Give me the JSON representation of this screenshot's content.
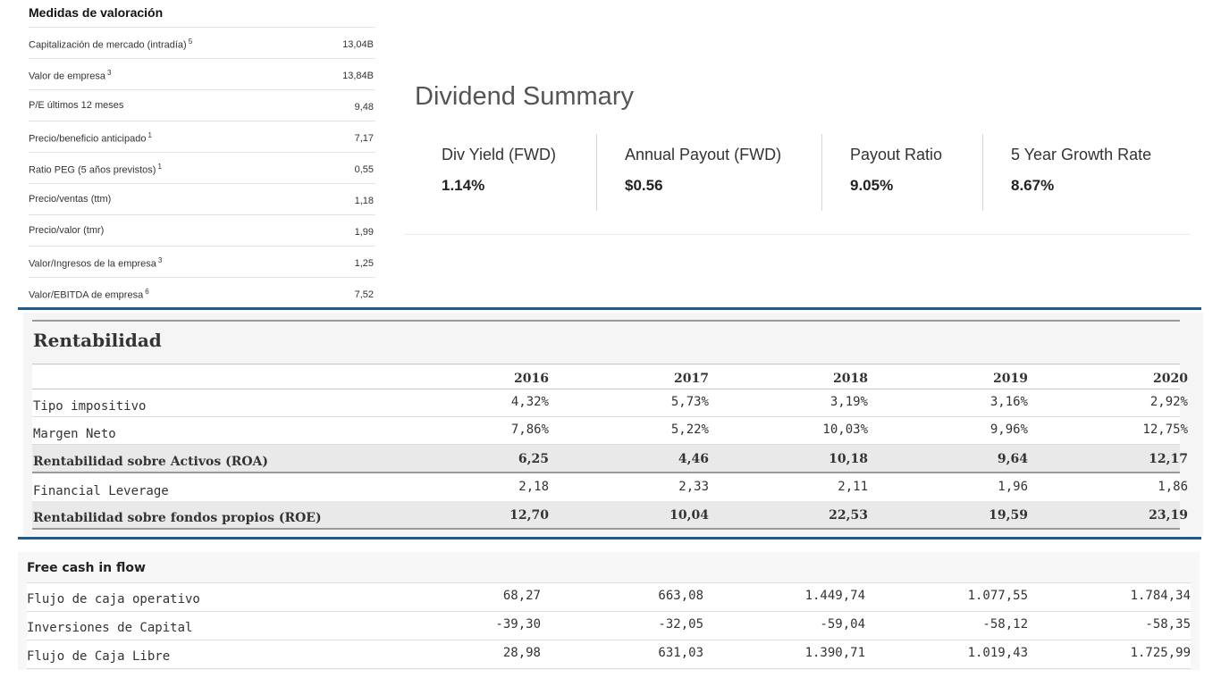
{
  "valuation": {
    "title": "Medidas de valoración",
    "rows": [
      {
        "label": "Capitalización de mercado (intradía)",
        "sup": "5",
        "value": "13,04B"
      },
      {
        "label": "Valor de empresa",
        "sup": "3",
        "value": "13,84B"
      },
      {
        "label": "P/E últimos 12 meses",
        "sup": "",
        "value": "9,48"
      },
      {
        "label": "Precio/beneficio anticipado",
        "sup": "1",
        "value": "7,17"
      },
      {
        "label": "Ratio PEG (5 años previstos)",
        "sup": "1",
        "value": "0,55"
      },
      {
        "label": "Precio/ventas (ttm)",
        "sup": "",
        "value": "1,18"
      },
      {
        "label": "Precio/valor (tmr)",
        "sup": "",
        "value": "1,99"
      },
      {
        "label": "Valor/Ingresos de la empresa",
        "sup": "3",
        "value": "1,25"
      },
      {
        "label": "Valor/EBITDA de empresa",
        "sup": "6",
        "value": "7,52"
      }
    ]
  },
  "dividend": {
    "title": "Dividend Summary",
    "items": [
      {
        "label": "Div Yield (FWD)",
        "value": "1.14%"
      },
      {
        "label": "Annual Payout (FWD)",
        "value": "$0.56"
      },
      {
        "label": "Payout Ratio",
        "value": "9.05%"
      },
      {
        "label": "5 Year Growth Rate",
        "value": "8.67%"
      }
    ]
  },
  "profitability": {
    "title": "Rentabilidad",
    "years": [
      "2016",
      "2017",
      "2018",
      "2019",
      "2020"
    ],
    "rows": [
      {
        "label": "Tipo impositivo",
        "bold": false,
        "values": [
          "4,32%",
          "5,73%",
          "3,19%",
          "3,16%",
          "2,92%"
        ]
      },
      {
        "label": "Margen Neto",
        "bold": false,
        "values": [
          "7,86%",
          "5,22%",
          "10,03%",
          "9,96%",
          "12,75%"
        ]
      },
      {
        "label": "Rentabilidad sobre Activos (ROA)",
        "bold": true,
        "values": [
          "6,25",
          "4,46",
          "10,18",
          "9,64",
          "12,17"
        ]
      },
      {
        "label": "Financial Leverage",
        "bold": false,
        "values": [
          "2,18",
          "2,33",
          "2,11",
          "1,96",
          "1,86"
        ]
      },
      {
        "label": "Rentabilidad sobre fondos propios (ROE)",
        "bold": true,
        "values": [
          "12,70",
          "10,04",
          "22,53",
          "19,59",
          "23,19"
        ]
      }
    ]
  },
  "free_cash_flow": {
    "title": "Free cash in flow",
    "rows": [
      {
        "label": "Flujo de caja operativo",
        "values": [
          "68,27",
          "663,08",
          "1.449,74",
          "1.077,55",
          "1.784,34"
        ]
      },
      {
        "label": "Inversiones de Capital",
        "values": [
          "-39,30",
          "-32,05",
          "-59,04",
          "-58,12",
          "-58,35"
        ]
      },
      {
        "label": "Flujo de Caja Libre",
        "values": [
          "28,98",
          "631,03",
          "1.390,71",
          "1.019,43",
          "1.725,99"
        ]
      }
    ]
  },
  "colors": {
    "separator": "#1b5b8e"
  }
}
